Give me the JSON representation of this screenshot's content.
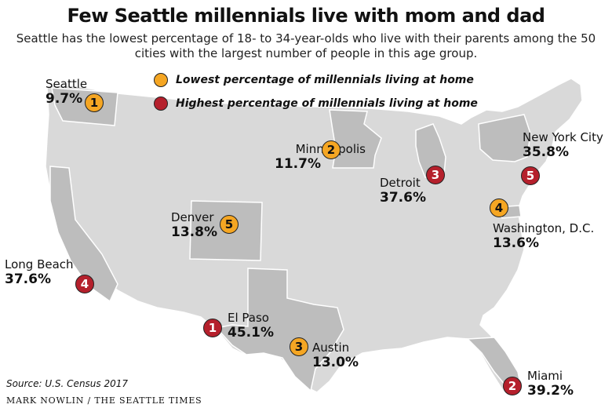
{
  "title": "Few Seattle millennials live with mom and dad",
  "subtitle": "Seattle has the lowest percentage of 18- to 34-year-olds who live with their parents among the 50 cities with the largest number of people in this age group.",
  "colors": {
    "lowest": "#f5a623",
    "highest": "#b5202c",
    "map_fill": "#d9d9d9",
    "highlight_state": "#bdbdbd"
  },
  "legend": [
    {
      "label": "Lowest percentage of millennials living at home",
      "color": "#f5a623"
    },
    {
      "label": "Highest percentage of millennials living at home",
      "color": "#b5202c"
    }
  ],
  "cities": [
    {
      "name": "Seattle",
      "pct": "9.7%",
      "rank": "1",
      "group": "lowest"
    },
    {
      "name": "Minneapolis",
      "pct": "11.7%",
      "rank": "2",
      "group": "lowest"
    },
    {
      "name": "Austin",
      "pct": "13.0%",
      "rank": "3",
      "group": "lowest"
    },
    {
      "name": "Washington, D.C.",
      "pct": "13.6%",
      "rank": "4",
      "group": "lowest"
    },
    {
      "name": "Denver",
      "pct": "13.8%",
      "rank": "5",
      "group": "lowest"
    },
    {
      "name": "El Paso",
      "pct": "45.1%",
      "rank": "1",
      "group": "highest"
    },
    {
      "name": "Miami",
      "pct": "39.2%",
      "rank": "2",
      "group": "highest"
    },
    {
      "name": "Detroit",
      "pct": "37.6%",
      "rank": "3",
      "group": "highest"
    },
    {
      "name": "Long Beach",
      "pct": "37.6%",
      "rank": "4",
      "group": "highest"
    },
    {
      "name": "New York City",
      "pct": "35.8%",
      "rank": "5",
      "group": "highest"
    }
  ],
  "source": "Source: U.S. Census 2017",
  "credit": "MARK NOWLIN / THE SEATTLE TIMES"
}
